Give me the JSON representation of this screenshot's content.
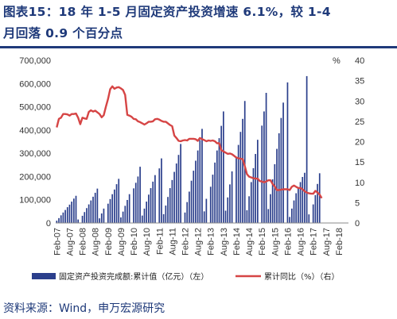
{
  "title": {
    "line1": "图表15：18 年 1-5 月固定资产投资增速 6.1%，较 1-4",
    "line2": "月回落 0.9 个百分点"
  },
  "source": "资料来源：Wind，申万宏源研究",
  "chart_data": {
    "type": "bar+line",
    "left_axis": {
      "ylim": [
        0,
        700000
      ],
      "ticks": [
        "0",
        "100,000",
        "200,000",
        "300,000",
        "400,000",
        "500,000",
        "600,000",
        "700,000"
      ]
    },
    "right_axis": {
      "unit_label": "%",
      "ylim": [
        0,
        40
      ],
      "ticks": [
        "0",
        "5",
        "10",
        "15",
        "20",
        "25",
        "30",
        "35",
        "40"
      ]
    },
    "x_tick_labels": [
      "Feb-07",
      "Aug-07",
      "Feb-08",
      "Aug-08",
      "Feb-09",
      "Aug-09",
      "Feb-10",
      "Aug-10",
      "Feb-11",
      "Aug-11",
      "Feb-12",
      "Aug-12",
      "Feb-13",
      "Aug-13",
      "Feb-14",
      "Aug-14",
      "Feb-15",
      "Aug-15",
      "Feb-16",
      "Aug-16",
      "Feb-17",
      "Aug-17",
      "Feb-18"
    ],
    "grid": false,
    "legend_position": "bottom",
    "series": [
      {
        "name": "固定资产投资完成额:累计值（亿元）（左）",
        "axis": "left",
        "kind": "bar",
        "color": "#2b3f8c",
        "values": [
          10000,
          21000,
          33000,
          45000,
          56000,
          68000,
          79000,
          92000,
          105000,
          117000,
          15000,
          31000,
          47000,
          64000,
          80000,
          97000,
          113000,
          130000,
          148000,
          20000,
          41000,
          62000,
          83000,
          103000,
          124000,
          144000,
          167000,
          190000,
          24000,
          49000,
          74000,
          99000,
          124000,
          149000,
          173000,
          200000,
          242000,
          32000,
          62000,
          92000,
          122000,
          150000,
          178000,
          206000,
          235000,
          278000,
          38000,
          75000,
          112000,
          150000,
          185000,
          220000,
          256000,
          293000,
          340000,
          45000,
          90000,
          135000,
          182000,
          225000,
          268000,
          312000,
          357000,
          405000,
          50000,
          104000,
          156000,
          208000,
          260000,
          312000,
          365000,
          418000,
          480000,
          53000,
          110000,
          166000,
          222000,
          279000,
          336000,
          392000,
          448000,
          525000,
          55000,
          115000,
          176000,
          236000,
          297000,
          358000,
          419000,
          480000,
          560000,
          60000,
          124000,
          188000,
          253000,
          319000,
          386000,
          452000,
          518000,
          605000,
          26000,
          62000,
          97000,
          128000,
          152000,
          176000,
          198000,
          216000,
          632000,
          37000,
          80000,
          120000,
          168000,
          214000
        ]
      },
      {
        "name": "累计同比（%）（右）",
        "axis": "right",
        "kind": "line",
        "color": "#d64545",
        "x_start": "Feb-07",
        "x_end": "May-18",
        "values": [
          23.5,
          25.6,
          25.9,
          26.8,
          26.8,
          26.7,
          26.4,
          26.8,
          26.8,
          26.9,
          25.9,
          24.3,
          25.9,
          25.7,
          25.6,
          27.3,
          27.7,
          27.4,
          27.6,
          27.2,
          26.8,
          26.0,
          26.5,
          28.6,
          30.5,
          32.9,
          33.6,
          33.0,
          33.3,
          33.4,
          33.1,
          32.7,
          31.5,
          26.6,
          26.4,
          26.1,
          25.6,
          25.5,
          25.0,
          24.8,
          24.5,
          24.2,
          24.5,
          24.9,
          24.9,
          25.0,
          25.5,
          25.6,
          25.4,
          25.1,
          24.9,
          24.9,
          24.5,
          24.1,
          23.8,
          21.5,
          20.9,
          20.2,
          20.1,
          20.3,
          20.4,
          20.3,
          20.7,
          20.7,
          20.7,
          20.6,
          20.2,
          20.9,
          20.6,
          20.4,
          20.1,
          20.3,
          20.2,
          20.3,
          20.1,
          19.6,
          19.6,
          17.9,
          17.6,
          17.3,
          17.0,
          17.1,
          16.9,
          16.5,
          16.1,
          15.9,
          15.8,
          15.7,
          14.0,
          12.0,
          11.4,
          11.2,
          11.0,
          10.9,
          10.9,
          10.3,
          10.2,
          10.0,
          10.2,
          10.5,
          10.5,
          9.6,
          9.0,
          8.1,
          8.1,
          8.2,
          8.3,
          8.3,
          8.3,
          8.1,
          8.9,
          9.2,
          8.9,
          8.6,
          8.6,
          8.3,
          7.8,
          7.5,
          7.3,
          7.2,
          7.2,
          7.9,
          7.5,
          7.0,
          6.1
        ]
      }
    ]
  }
}
